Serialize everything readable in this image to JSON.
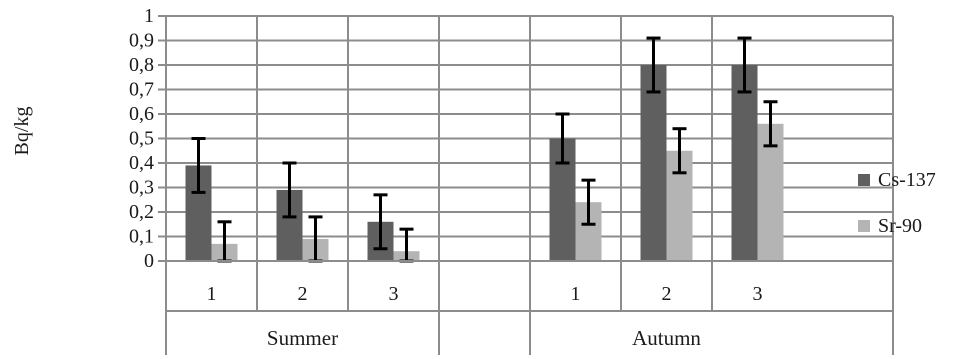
{
  "chart_data": {
    "type": "bar",
    "ylabel": "Bq/kg",
    "ylim": [
      0,
      1
    ],
    "yticks": [
      "0",
      "0,1",
      "0,2",
      "0,3",
      "0,4",
      "0,5",
      "0,6",
      "0,7",
      "0,8",
      "0,9",
      "1"
    ],
    "grid": true,
    "legend_position": "right",
    "groups": [
      {
        "label": "Summer",
        "categories": [
          "1",
          "2",
          "3"
        ]
      },
      {
        "label": "Autumn",
        "categories": [
          "1",
          "2",
          "3"
        ]
      }
    ],
    "categories": [
      "1",
      "2",
      "3",
      "1",
      "2",
      "3"
    ],
    "series": [
      {
        "name": "Cs-137",
        "color": "#5f5f5f",
        "values": [
          0.39,
          0.29,
          0.16,
          0.5,
          0.8,
          0.8
        ],
        "error": [
          0.11,
          0.11,
          0.11,
          0.1,
          0.11,
          0.11
        ]
      },
      {
        "name": "Sr-90",
        "color": "#b4b4b4",
        "values": [
          0.07,
          0.09,
          0.04,
          0.24,
          0.45,
          0.56
        ],
        "error": [
          0.09,
          0.09,
          0.09,
          0.09,
          0.09,
          0.09
        ]
      }
    ]
  }
}
